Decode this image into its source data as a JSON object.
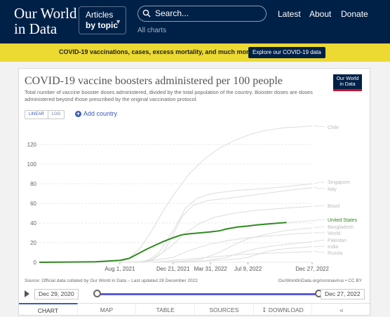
{
  "nav": {
    "logo_line1": "Our World",
    "logo_line2": "in Data",
    "articles_line1": "Articles",
    "articles_line2": "by topic",
    "search_placeholder": "Search...",
    "all_charts": "All charts",
    "links": [
      "Latest",
      "About",
      "Donate"
    ]
  },
  "banner": {
    "text": "COVID-19 vaccinations, cases, excess mortality, and much more",
    "button": "Explore our COVID-19 data"
  },
  "card": {
    "title": "COVID-19 vaccine boosters administered per 100 people",
    "subtitle": "Total number of vaccine booster doses administered, divided by the total population of the country. Booster doses are doses administered beyond those prescribed by the original vaccination protocol.",
    "badge_line1": "Our World",
    "badge_line2": "in Data",
    "scale_linear": "LINEAR",
    "scale_log": "LOG",
    "add_country": "Add country",
    "source": "Source: Official data collated by Our World in Data – Last updated 28 December 2022",
    "source_right": "OurWorldInData.org/coronavirus • CC BY",
    "timeline_start": "Dec 29, 2020",
    "timeline_end": "Dec 27, 2022",
    "tabs": [
      "CHART",
      "MAP",
      "TABLE",
      "SOURCES",
      "DOWNLOAD"
    ]
  },
  "chart_data": {
    "type": "line",
    "x_ticks": [
      "Aug 1, 2021",
      "Dec 21, 2021",
      "Mar 31, 2022",
      "Jul 9, 2022",
      "Dec 27, 2022"
    ],
    "x_tick_days": [
      215,
      357,
      457,
      557,
      728
    ],
    "x_range_days": [
      0,
      728
    ],
    "x_origin_date": "Dec 29, 2020",
    "y_ticks": [
      0,
      20,
      40,
      60,
      80,
      100,
      120
    ],
    "ylim": [
      0,
      140
    ],
    "grid": true,
    "highlight_color": "#2e8b1f",
    "background_color": "#dddddd",
    "series": [
      {
        "name": "Chile",
        "highlighted": false,
        "points": [
          [
            215,
            0
          ],
          [
            240,
            4
          ],
          [
            270,
            15
          ],
          [
            300,
            32
          ],
          [
            330,
            52
          ],
          [
            357,
            68
          ],
          [
            400,
            90
          ],
          [
            440,
            105
          ],
          [
            480,
            116
          ],
          [
            520,
            124
          ],
          [
            560,
            130
          ],
          [
            600,
            134
          ],
          [
            650,
            137
          ],
          [
            700,
            138
          ],
          [
            728,
            139
          ]
        ]
      },
      {
        "name": "Singapore",
        "highlighted": false,
        "points": [
          [
            260,
            0
          ],
          [
            290,
            2
          ],
          [
            320,
            10
          ],
          [
            357,
            32
          ],
          [
            390,
            55
          ],
          [
            420,
            65
          ],
          [
            460,
            70
          ],
          [
            520,
            73
          ],
          [
            600,
            75
          ],
          [
            680,
            78
          ],
          [
            728,
            80
          ]
        ]
      },
      {
        "name": "Italy",
        "highlighted": false,
        "points": [
          [
            260,
            0
          ],
          [
            300,
            2
          ],
          [
            330,
            10
          ],
          [
            357,
            28
          ],
          [
            380,
            46
          ],
          [
            410,
            58
          ],
          [
            450,
            63
          ],
          [
            500,
            65
          ],
          [
            560,
            68
          ],
          [
            620,
            71
          ],
          [
            680,
            74
          ],
          [
            728,
            76
          ]
        ]
      },
      {
        "name": "Brazil",
        "highlighted": false,
        "points": [
          [
            265,
            0
          ],
          [
            300,
            3
          ],
          [
            330,
            10
          ],
          [
            357,
            18
          ],
          [
            390,
            30
          ],
          [
            430,
            40
          ],
          [
            470,
            46
          ],
          [
            520,
            50
          ],
          [
            580,
            53
          ],
          [
            650,
            55
          ],
          [
            728,
            57
          ]
        ]
      },
      {
        "name": "United States",
        "highlighted": true,
        "points": [
          [
            0,
            0
          ],
          [
            150,
            0.5
          ],
          [
            215,
            2
          ],
          [
            240,
            4
          ],
          [
            260,
            8
          ],
          [
            290,
            14
          ],
          [
            330,
            21
          ],
          [
            357,
            25
          ],
          [
            380,
            28
          ],
          [
            400,
            29
          ],
          [
            430,
            30
          ],
          [
            457,
            31
          ],
          [
            480,
            32
          ],
          [
            500,
            34
          ],
          [
            530,
            36
          ],
          [
            557,
            37
          ],
          [
            580,
            38
          ],
          [
            610,
            39
          ],
          [
            640,
            40
          ],
          [
            660,
            40.5
          ]
        ]
      },
      {
        "name": "Bangladesh",
        "highlighted": false,
        "points": [
          [
            330,
            0
          ],
          [
            380,
            1
          ],
          [
            430,
            3
          ],
          [
            480,
            10
          ],
          [
            520,
            18
          ],
          [
            557,
            24
          ],
          [
            600,
            28
          ],
          [
            650,
            32
          ],
          [
            700,
            34
          ],
          [
            728,
            35
          ]
        ]
      },
      {
        "name": "World",
        "highlighted": false,
        "points": [
          [
            215,
            0
          ],
          [
            290,
            1
          ],
          [
            357,
            5
          ],
          [
            400,
            12
          ],
          [
            450,
            18
          ],
          [
            500,
            22
          ],
          [
            557,
            25
          ],
          [
            620,
            27
          ],
          [
            680,
            29
          ],
          [
            728,
            30
          ]
        ]
      },
      {
        "name": "Pakistan",
        "highlighted": false,
        "points": [
          [
            330,
            0
          ],
          [
            400,
            0.5
          ],
          [
            450,
            2
          ],
          [
            500,
            5
          ],
          [
            540,
            10
          ],
          [
            580,
            14
          ],
          [
            630,
            17
          ],
          [
            680,
            19
          ],
          [
            728,
            21
          ]
        ]
      },
      {
        "name": "India",
        "highlighted": false,
        "points": [
          [
            370,
            0
          ],
          [
            420,
            1
          ],
          [
            470,
            2
          ],
          [
            520,
            3
          ],
          [
            557,
            5
          ],
          [
            590,
            9
          ],
          [
            620,
            12
          ],
          [
            660,
            14
          ],
          [
            700,
            15
          ],
          [
            728,
            16
          ]
        ]
      },
      {
        "name": "Russia",
        "highlighted": false,
        "points": [
          [
            300,
            0
          ],
          [
            357,
            2
          ],
          [
            420,
            4
          ],
          [
            480,
            6
          ],
          [
            540,
            8
          ],
          [
            600,
            9
          ],
          [
            660,
            10
          ],
          [
            728,
            11
          ]
        ]
      }
    ]
  }
}
